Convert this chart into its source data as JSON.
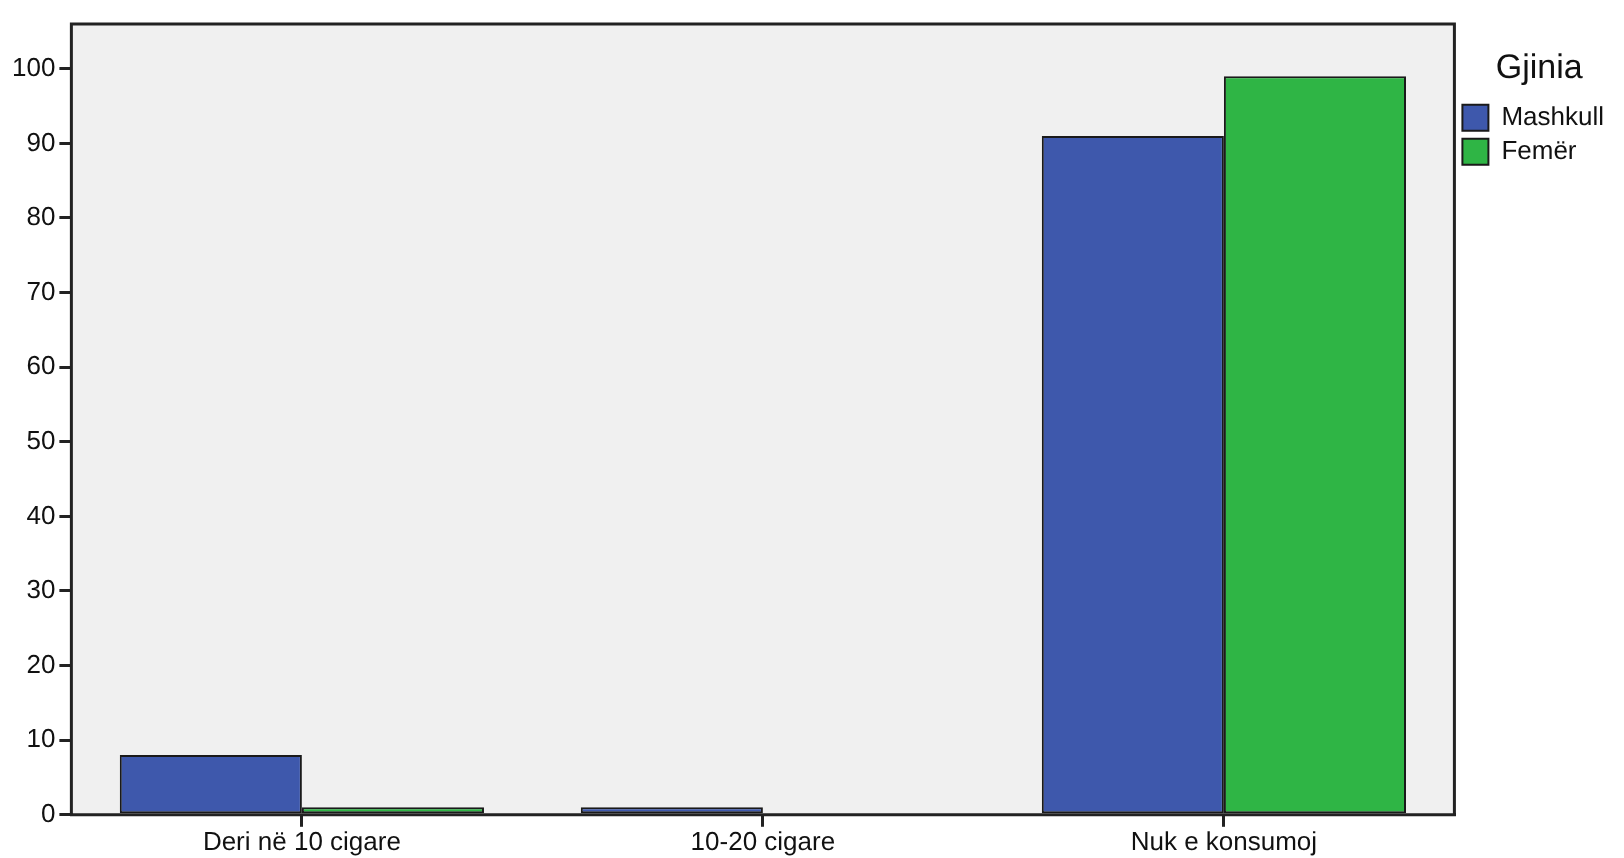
{
  "chart_data": {
    "type": "bar",
    "categories": [
      "Deri në 10 cigare",
      "10-20 cigare",
      "Nuk e konsumoj"
    ],
    "legend_title": "Gjinia",
    "series": [
      {
        "name": "Mashkull",
        "color": "#3e58ac",
        "values": [
          8,
          1,
          91
        ]
      },
      {
        "name": "Femër",
        "color": "#2fb545",
        "values": [
          1,
          null,
          99
        ]
      }
    ],
    "ylim": [
      0,
      106
    ],
    "yticks": [
      0,
      10,
      20,
      30,
      40,
      50,
      60,
      70,
      80,
      90,
      100
    ],
    "legend": "top right"
  }
}
